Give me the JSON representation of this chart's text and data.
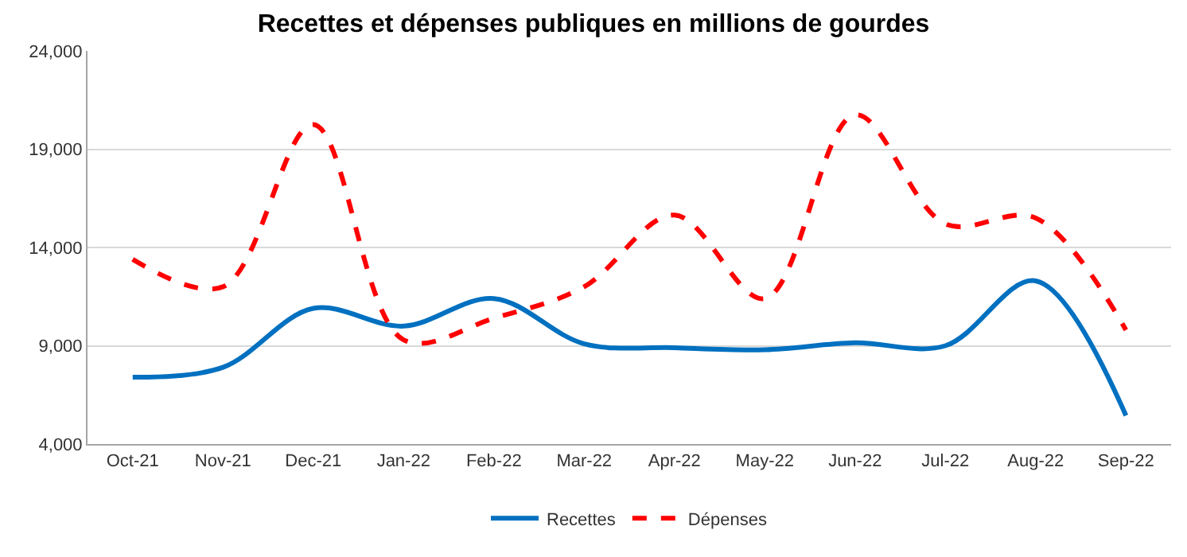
{
  "chart_data": {
    "type": "line",
    "title": "Recettes et dépenses publiques en millions de gourdes",
    "categories": [
      "Oct-21",
      "Nov-21",
      "Dec-21",
      "Jan-22",
      "Feb-22",
      "Mar-22",
      "Apr-22",
      "May-22",
      "Jun-22",
      "Jul-22",
      "Aug-22",
      "Sep-22"
    ],
    "series": [
      {
        "name": "Recettes",
        "color": "#0070c0",
        "line_style": "solid",
        "values": [
          7400,
          7900,
          10900,
          10000,
          11400,
          9100,
          8900,
          8800,
          9150,
          9000,
          12300,
          5450
        ]
      },
      {
        "name": "Dépenses",
        "color": "#ff0000",
        "line_style": "dashed",
        "values": [
          13400,
          12000,
          20250,
          9300,
          10400,
          12000,
          15650,
          11400,
          20750,
          15200,
          15500,
          9800
        ]
      }
    ],
    "ylim": [
      4000,
      24000
    ],
    "yticks": [
      {
        "value": 4000,
        "label": "4,000"
      },
      {
        "value": 9000,
        "label": "9,000"
      },
      {
        "value": 14000,
        "label": "14,000"
      },
      {
        "value": 19000,
        "label": "19,000"
      },
      {
        "value": 24000,
        "label": "24,000"
      }
    ],
    "grid": "y",
    "legend": "bottom",
    "marker": "none"
  }
}
